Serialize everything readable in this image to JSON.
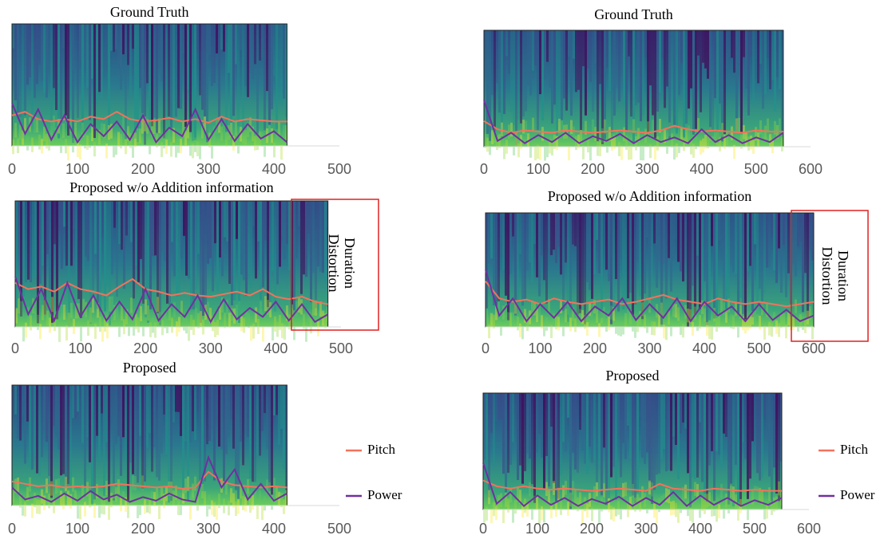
{
  "chart_data": [
    {
      "type": "line",
      "title": "Ground Truth",
      "x": [
        0,
        20,
        40,
        60,
        80,
        100,
        120,
        140,
        160,
        180,
        200,
        220,
        240,
        260,
        280,
        300,
        320,
        340,
        360,
        380,
        400,
        420
      ],
      "xlim": [
        0,
        500
      ],
      "xticks": [
        0,
        100,
        200,
        300,
        400,
        500
      ],
      "ylim": [
        0,
        100
      ],
      "series": [
        {
          "name": "Pitch",
          "color": "#f4725c",
          "values": [
            25,
            28,
            22,
            20,
            22,
            20,
            24,
            22,
            28,
            22,
            20,
            21,
            23,
            20,
            22,
            19,
            24,
            20,
            22,
            21,
            20,
            20
          ]
        },
        {
          "name": "Power",
          "color": "#7030a0",
          "values": [
            35,
            10,
            30,
            5,
            25,
            3,
            18,
            8,
            20,
            5,
            25,
            3,
            15,
            8,
            30,
            5,
            22,
            4,
            18,
            6,
            12,
            3
          ]
        }
      ]
    },
    {
      "type": "line",
      "title": "Ground Truth",
      "x": [
        0,
        25,
        50,
        75,
        100,
        125,
        150,
        175,
        200,
        225,
        250,
        275,
        300,
        325,
        350,
        375,
        400,
        425,
        450,
        475,
        500,
        525,
        550
      ],
      "xlim": [
        0,
        600
      ],
      "xticks": [
        0,
        100,
        200,
        300,
        400,
        500,
        600
      ],
      "ylim": [
        0,
        100
      ],
      "series": [
        {
          "name": "Pitch",
          "color": "#f4725c",
          "values": [
            22,
            15,
            12,
            14,
            13,
            12,
            14,
            13,
            12,
            13,
            14,
            13,
            12,
            14,
            18,
            15,
            13,
            14,
            13,
            12,
            14,
            13,
            13
          ]
        },
        {
          "name": "Power",
          "color": "#7030a0",
          "values": [
            40,
            5,
            12,
            3,
            10,
            4,
            12,
            3,
            9,
            5,
            11,
            3,
            10,
            4,
            8,
            3,
            15,
            4,
            10,
            3,
            8,
            4,
            12
          ]
        }
      ]
    },
    {
      "type": "line",
      "title": "Proposed w/o Addition information",
      "annotation": [
        "Duration",
        "Distortion"
      ],
      "x": [
        0,
        20,
        40,
        60,
        80,
        100,
        120,
        140,
        160,
        180,
        200,
        220,
        240,
        260,
        280,
        300,
        320,
        340,
        360,
        380,
        400,
        420,
        440,
        460,
        480
      ],
      "xlim": [
        0,
        500
      ],
      "xticks": [
        0,
        100,
        200,
        300,
        400,
        500
      ],
      "ylim": [
        0,
        100
      ],
      "series": [
        {
          "name": "Pitch",
          "color": "#f4725c",
          "values": [
            35,
            30,
            32,
            28,
            35,
            30,
            28,
            25,
            32,
            38,
            30,
            28,
            25,
            27,
            25,
            24,
            26,
            28,
            25,
            30,
            24,
            22,
            24,
            20,
            18
          ]
        },
        {
          "name": "Power",
          "color": "#7030a0",
          "values": [
            40,
            10,
            30,
            5,
            35,
            8,
            25,
            5,
            20,
            6,
            30,
            5,
            18,
            8,
            25,
            4,
            22,
            6,
            15,
            8,
            20,
            5,
            18,
            4,
            10
          ]
        }
      ]
    },
    {
      "type": "line",
      "title": "Proposed w/o Addition information",
      "annotation": [
        "Duration",
        "Distortion"
      ],
      "x": [
        0,
        25,
        50,
        75,
        100,
        125,
        150,
        175,
        200,
        225,
        250,
        275,
        300,
        325,
        350,
        375,
        400,
        425,
        450,
        475,
        500,
        525,
        550,
        575,
        600
      ],
      "xlim": [
        0,
        600
      ],
      "xticks": [
        0,
        100,
        200,
        300,
        400,
        500,
        600
      ],
      "ylim": [
        0,
        100
      ],
      "series": [
        {
          "name": "Pitch",
          "color": "#f4725c",
          "values": [
            40,
            25,
            22,
            24,
            20,
            25,
            22,
            20,
            22,
            24,
            20,
            22,
            25,
            28,
            24,
            22,
            20,
            25,
            22,
            20,
            22,
            20,
            18,
            20,
            22
          ]
        },
        {
          "name": "Power",
          "color": "#7030a0",
          "values": [
            50,
            10,
            25,
            5,
            20,
            8,
            22,
            5,
            18,
            10,
            25,
            6,
            20,
            8,
            25,
            5,
            22,
            10,
            18,
            5,
            20,
            6,
            15,
            5,
            10
          ]
        }
      ]
    },
    {
      "type": "line",
      "title": "Proposed",
      "legend": true,
      "x": [
        0,
        20,
        40,
        60,
        80,
        100,
        120,
        140,
        160,
        180,
        200,
        220,
        240,
        260,
        280,
        300,
        320,
        340,
        360,
        380,
        400,
        420
      ],
      "xlim": [
        0,
        500
      ],
      "xticks": [
        0,
        100,
        200,
        300,
        400,
        500
      ],
      "ylim": [
        0,
        100
      ],
      "series": [
        {
          "name": "Pitch",
          "color": "#f4725c",
          "values": [
            20,
            18,
            16,
            17,
            15,
            16,
            15,
            16,
            18,
            17,
            16,
            15,
            16,
            14,
            15,
            28,
            20,
            17,
            16,
            15,
            16,
            15
          ]
        },
        {
          "name": "Power",
          "color": "#7030a0",
          "values": [
            15,
            5,
            8,
            3,
            10,
            4,
            12,
            5,
            9,
            3,
            7,
            4,
            10,
            5,
            3,
            40,
            15,
            30,
            5,
            18,
            4,
            10
          ]
        }
      ]
    },
    {
      "type": "line",
      "title": "Proposed",
      "legend": true,
      "x": [
        0,
        25,
        50,
        75,
        100,
        125,
        150,
        175,
        200,
        225,
        250,
        275,
        300,
        325,
        350,
        375,
        400,
        425,
        450,
        475,
        500,
        525,
        550
      ],
      "xlim": [
        0,
        600
      ],
      "xticks": [
        0,
        100,
        200,
        300,
        400,
        500,
        600
      ],
      "ylim": [
        0,
        100
      ],
      "series": [
        {
          "name": "Pitch",
          "color": "#f4725c",
          "values": [
            25,
            20,
            18,
            20,
            18,
            17,
            18,
            17,
            16,
            17,
            18,
            17,
            16,
            22,
            18,
            17,
            16,
            18,
            17,
            16,
            17,
            16,
            16
          ]
        },
        {
          "name": "Power",
          "color": "#7030a0",
          "values": [
            40,
            5,
            15,
            3,
            12,
            4,
            10,
            3,
            9,
            5,
            11,
            3,
            10,
            4,
            15,
            3,
            12,
            4,
            10,
            3,
            8,
            4,
            10
          ]
        }
      ]
    }
  ]
}
